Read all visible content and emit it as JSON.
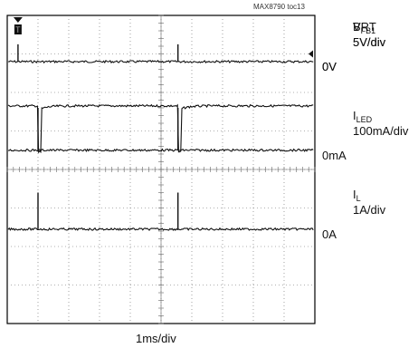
{
  "figure_tag": "MAX8790 toc13",
  "chart_data": {
    "type": "line",
    "x_divisions": 10,
    "y_divisions": 8,
    "xlabel": "1ms/div",
    "trigger_marker": "T",
    "channels": [
      {
        "name": "BRT",
        "name_sub": "",
        "scale": "5V/div",
        "zero_label": "0V",
        "baseline_div": 1.2,
        "high_div": 1.55,
        "events": [
          {
            "t_div": 0.35,
            "kind": "spike_up",
            "amp_div": 0.45
          },
          {
            "t_div": 5.55,
            "kind": "spike_up",
            "amp_div": 0.45
          }
        ]
      },
      {
        "name": "V",
        "name_sub": "FB1",
        "scale": "5V/div",
        "zero_label": "0V",
        "baseline_div": 1.2,
        "high_div": 2.35,
        "events": [
          {
            "t_div": 1.0,
            "kind": "dip_down",
            "amp_div": 1.2
          },
          {
            "t_div": 5.55,
            "kind": "dip_down",
            "amp_div": 1.2
          }
        ]
      },
      {
        "name": "I",
        "name_sub": "LED",
        "scale": "100mA/div",
        "zero_label": "0mA",
        "baseline_div": 3.5,
        "high_div": 3.5,
        "events": [
          {
            "t_div": 1.0,
            "kind": "spike_up",
            "amp_div": 1.1
          },
          {
            "t_div": 5.55,
            "kind": "spike_up",
            "amp_div": 1.1
          }
        ]
      },
      {
        "name": "I",
        "name_sub": "L",
        "scale": "1A/div",
        "zero_label": "0A",
        "baseline_div": 5.55,
        "high_div": 5.55,
        "events": [
          {
            "t_div": 1.0,
            "kind": "spike_up",
            "amp_div": 0.95
          },
          {
            "t_div": 5.55,
            "kind": "spike_up",
            "amp_div": 0.95
          }
        ]
      }
    ]
  }
}
